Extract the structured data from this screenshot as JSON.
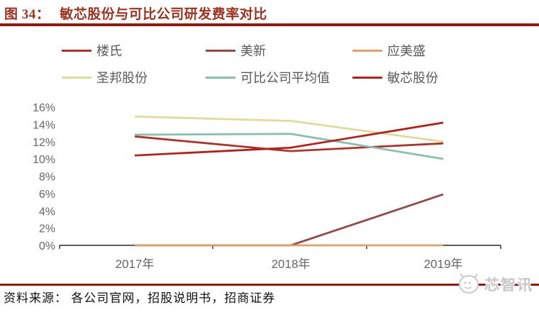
{
  "figure": {
    "title_prefix": "图 34：",
    "title_text": "敏芯股份与可比公司研发费率对比",
    "source_text": "资料来源： 各公司官网，招股说明书，招商证券",
    "watermark_text": "芯智讯",
    "accent_color": "#8C1A12",
    "title_color": "#9B3222",
    "axis_label_color": "#666666"
  },
  "chart_data": {
    "type": "line",
    "title": "敏芯股份与可比公司研发费率对比",
    "categories": [
      "2017年",
      "2018年",
      "2019年"
    ],
    "series": [
      {
        "name": "楼氏",
        "color": "#A9352E",
        "values": [
          12.6,
          10.9,
          11.8
        ]
      },
      {
        "name": "美新",
        "color": "#8F4B47",
        "values": [
          0.0,
          0.0,
          5.9
        ]
      },
      {
        "name": "应美盛",
        "color": "#DCA269",
        "values": [
          0.0,
          0.0,
          0.0
        ]
      },
      {
        "name": "圣邦股份",
        "color": "#E0DB9B",
        "values": [
          14.9,
          14.4,
          12.0
        ]
      },
      {
        "name": "可比公司平均值",
        "color": "#8ABFB0",
        "values": [
          12.8,
          12.9,
          10.0
        ]
      },
      {
        "name": "敏芯股份",
        "color": "#AE241E",
        "values": [
          10.4,
          11.3,
          14.2
        ]
      }
    ],
    "xlabel": "",
    "ylabel": "",
    "ylim": [
      0,
      16
    ],
    "ytick_step": 2,
    "ytick_suffix": "%",
    "grid": false,
    "legend_position": "top"
  }
}
